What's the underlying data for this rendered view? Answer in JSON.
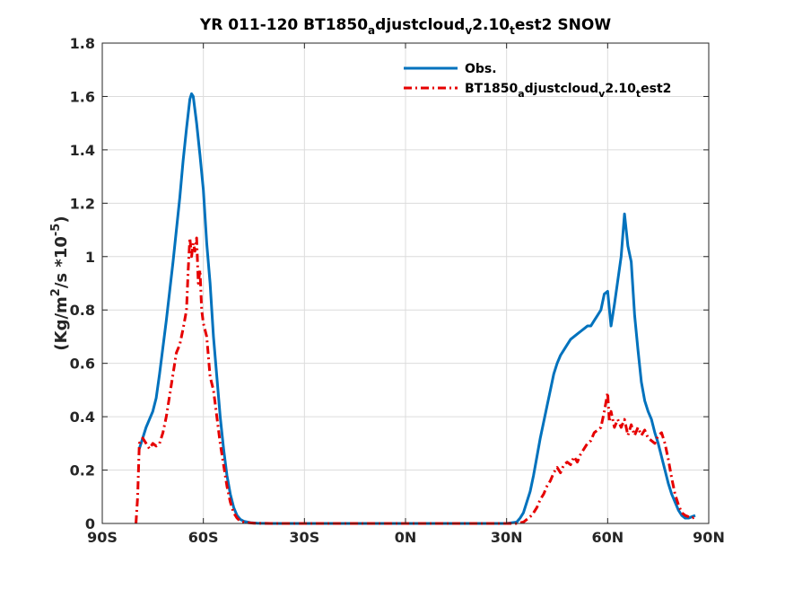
{
  "chart_data": {
    "type": "line",
    "title": {
      "parts": [
        {
          "text": "YR 011-120 BT1850",
          "sub": false
        },
        {
          "text": "a",
          "sub": true
        },
        {
          "text": "djustcloud",
          "sub": false
        },
        {
          "text": "v",
          "sub": true
        },
        {
          "text": "2.10",
          "sub": false
        },
        {
          "text": "t",
          "sub": true
        },
        {
          "text": "est2 SNOW",
          "sub": false
        }
      ]
    },
    "ylabel": {
      "parts": [
        {
          "text": "(Kg/m",
          "sup": false
        },
        {
          "text": "2",
          "sup": true
        },
        {
          "text": "/s *10",
          "sup": false
        },
        {
          "text": "-5",
          "sup": true
        },
        {
          "text": ")",
          "sup": false
        }
      ]
    },
    "xlim": [
      -90,
      90
    ],
    "ylim": [
      0,
      1.8
    ],
    "xticks": [
      -90,
      -60,
      -30,
      0,
      30,
      60,
      90
    ],
    "xtick_labels": [
      "90S",
      "60S",
      "30S",
      "0N",
      "30N",
      "60N",
      "90N"
    ],
    "yticks": [
      0,
      0.2,
      0.4,
      0.6,
      0.8,
      1.0,
      1.2,
      1.4,
      1.6,
      1.8
    ],
    "ytick_labels": [
      "0",
      "0.2",
      "0.4",
      "0.6",
      "0.8",
      "1",
      "1.2",
      "1.4",
      "1.6",
      "1.8"
    ],
    "grid": true,
    "legend_position": "top-right",
    "series": [
      {
        "name": "Obs.",
        "color": "#0072bd",
        "style": "solid",
        "points": [
          [
            -79,
            0.28
          ],
          [
            -78,
            0.32
          ],
          [
            -77,
            0.36
          ],
          [
            -76,
            0.39
          ],
          [
            -75,
            0.42
          ],
          [
            -74,
            0.47
          ],
          [
            -73,
            0.56
          ],
          [
            -72,
            0.66
          ],
          [
            -71,
            0.76
          ],
          [
            -70,
            0.87
          ],
          [
            -69,
            0.98
          ],
          [
            -68,
            1.1
          ],
          [
            -67,
            1.22
          ],
          [
            -66,
            1.36
          ],
          [
            -65,
            1.48
          ],
          [
            -64,
            1.59
          ],
          [
            -63.5,
            1.61
          ],
          [
            -63,
            1.6
          ],
          [
            -62,
            1.5
          ],
          [
            -61,
            1.38
          ],
          [
            -60,
            1.25
          ],
          [
            -59,
            1.05
          ],
          [
            -58,
            0.9
          ],
          [
            -57,
            0.7
          ],
          [
            -56,
            0.55
          ],
          [
            -55,
            0.4
          ],
          [
            -54,
            0.28
          ],
          [
            -53,
            0.18
          ],
          [
            -52,
            0.11
          ],
          [
            -51,
            0.06
          ],
          [
            -50,
            0.03
          ],
          [
            -49,
            0.015
          ],
          [
            -48,
            0.008
          ],
          [
            -46,
            0.003
          ],
          [
            -44,
            0.001
          ],
          [
            -40,
            0.0
          ],
          [
            30,
            0.0
          ],
          [
            33,
            0.005
          ],
          [
            34,
            0.02
          ],
          [
            35,
            0.04
          ],
          [
            36,
            0.08
          ],
          [
            37,
            0.12
          ],
          [
            38,
            0.18
          ],
          [
            39,
            0.25
          ],
          [
            40,
            0.32
          ],
          [
            41,
            0.38
          ],
          [
            42,
            0.44
          ],
          [
            43,
            0.5
          ],
          [
            44,
            0.56
          ],
          [
            45,
            0.6
          ],
          [
            46,
            0.63
          ],
          [
            47,
            0.65
          ],
          [
            48,
            0.67
          ],
          [
            49,
            0.69
          ],
          [
            50,
            0.7
          ],
          [
            51,
            0.71
          ],
          [
            52,
            0.72
          ],
          [
            53,
            0.73
          ],
          [
            54,
            0.74
          ],
          [
            55,
            0.74
          ],
          [
            56,
            0.76
          ],
          [
            57,
            0.78
          ],
          [
            58,
            0.8
          ],
          [
            59,
            0.86
          ],
          [
            60,
            0.87
          ],
          [
            61,
            0.74
          ],
          [
            62,
            0.82
          ],
          [
            63,
            0.91
          ],
          [
            64,
            1.0
          ],
          [
            64.5,
            1.08
          ],
          [
            65,
            1.16
          ],
          [
            66,
            1.04
          ],
          [
            67,
            0.98
          ],
          [
            68,
            0.78
          ],
          [
            69,
            0.65
          ],
          [
            70,
            0.53
          ],
          [
            71,
            0.46
          ],
          [
            72,
            0.42
          ],
          [
            73,
            0.39
          ],
          [
            74,
            0.34
          ],
          [
            75,
            0.3
          ],
          [
            76,
            0.25
          ],
          [
            77,
            0.2
          ],
          [
            78,
            0.15
          ],
          [
            79,
            0.11
          ],
          [
            80,
            0.08
          ],
          [
            81,
            0.05
          ],
          [
            82,
            0.03
          ],
          [
            83,
            0.02
          ],
          [
            84,
            0.02
          ],
          [
            85,
            0.025
          ],
          [
            86,
            0.03
          ]
        ]
      },
      {
        "name": "BT1850_adjustcloud_v2.10_test2",
        "name_parts": [
          {
            "text": "BT1850",
            "sub": false
          },
          {
            "text": "a",
            "sub": true
          },
          {
            "text": "djustcloud",
            "sub": false
          },
          {
            "text": "v",
            "sub": true
          },
          {
            "text": "2.10",
            "sub": false
          },
          {
            "text": "t",
            "sub": true
          },
          {
            "text": "est2",
            "sub": false
          }
        ],
        "color": "#e60000",
        "style": "dashed",
        "points": [
          [
            -80,
            0.0
          ],
          [
            -79.5,
            0.1
          ],
          [
            -79,
            0.3
          ],
          [
            -78,
            0.32
          ],
          [
            -77,
            0.3
          ],
          [
            -76,
            0.28
          ],
          [
            -75,
            0.3
          ],
          [
            -74,
            0.29
          ],
          [
            -73,
            0.3
          ],
          [
            -72,
            0.34
          ],
          [
            -71,
            0.4
          ],
          [
            -70,
            0.48
          ],
          [
            -69,
            0.56
          ],
          [
            -68,
            0.64
          ],
          [
            -67,
            0.67
          ],
          [
            -66,
            0.73
          ],
          [
            -65,
            0.8
          ],
          [
            -64.5,
            0.95
          ],
          [
            -64,
            1.07
          ],
          [
            -63.5,
            1.0
          ],
          [
            -63,
            1.05
          ],
          [
            -62.5,
            1.02
          ],
          [
            -62,
            1.07
          ],
          [
            -61.5,
            0.9
          ],
          [
            -61,
            0.95
          ],
          [
            -60.5,
            0.8
          ],
          [
            -60,
            0.75
          ],
          [
            -59,
            0.7
          ],
          [
            -58,
            0.55
          ],
          [
            -57,
            0.5
          ],
          [
            -56,
            0.4
          ],
          [
            -55,
            0.3
          ],
          [
            -54,
            0.22
          ],
          [
            -53,
            0.14
          ],
          [
            -52,
            0.08
          ],
          [
            -51,
            0.04
          ],
          [
            -50,
            0.02
          ],
          [
            -49,
            0.008
          ],
          [
            -47,
            0.003
          ],
          [
            -45,
            0.001
          ],
          [
            -40,
            0.0
          ],
          [
            33,
            0.0
          ],
          [
            35,
            0.005
          ],
          [
            36,
            0.015
          ],
          [
            37,
            0.025
          ],
          [
            38,
            0.04
          ],
          [
            39,
            0.06
          ],
          [
            40,
            0.09
          ],
          [
            41,
            0.11
          ],
          [
            42,
            0.14
          ],
          [
            43,
            0.16
          ],
          [
            44,
            0.19
          ],
          [
            45,
            0.21
          ],
          [
            46,
            0.19
          ],
          [
            47,
            0.22
          ],
          [
            48,
            0.23
          ],
          [
            49,
            0.22
          ],
          [
            50,
            0.25
          ],
          [
            51,
            0.23
          ],
          [
            52,
            0.26
          ],
          [
            53,
            0.28
          ],
          [
            54,
            0.3
          ],
          [
            55,
            0.31
          ],
          [
            56,
            0.34
          ],
          [
            57,
            0.35
          ],
          [
            58,
            0.36
          ],
          [
            59,
            0.42
          ],
          [
            60,
            0.49
          ],
          [
            60.5,
            0.38
          ],
          [
            61,
            0.42
          ],
          [
            62,
            0.36
          ],
          [
            63,
            0.39
          ],
          [
            64,
            0.36
          ],
          [
            65,
            0.39
          ],
          [
            66,
            0.33
          ],
          [
            67,
            0.37
          ],
          [
            68,
            0.33
          ],
          [
            69,
            0.36
          ],
          [
            70,
            0.33
          ],
          [
            71,
            0.35
          ],
          [
            72,
            0.32
          ],
          [
            73,
            0.31
          ],
          [
            74,
            0.3
          ],
          [
            75,
            0.33
          ],
          [
            76,
            0.34
          ],
          [
            77,
            0.3
          ],
          [
            78,
            0.24
          ],
          [
            79,
            0.17
          ],
          [
            80,
            0.11
          ],
          [
            81,
            0.07
          ],
          [
            82,
            0.04
          ],
          [
            83,
            0.03
          ],
          [
            84,
            0.025
          ],
          [
            85,
            0.02
          ],
          [
            86,
            0.025
          ]
        ]
      }
    ]
  }
}
